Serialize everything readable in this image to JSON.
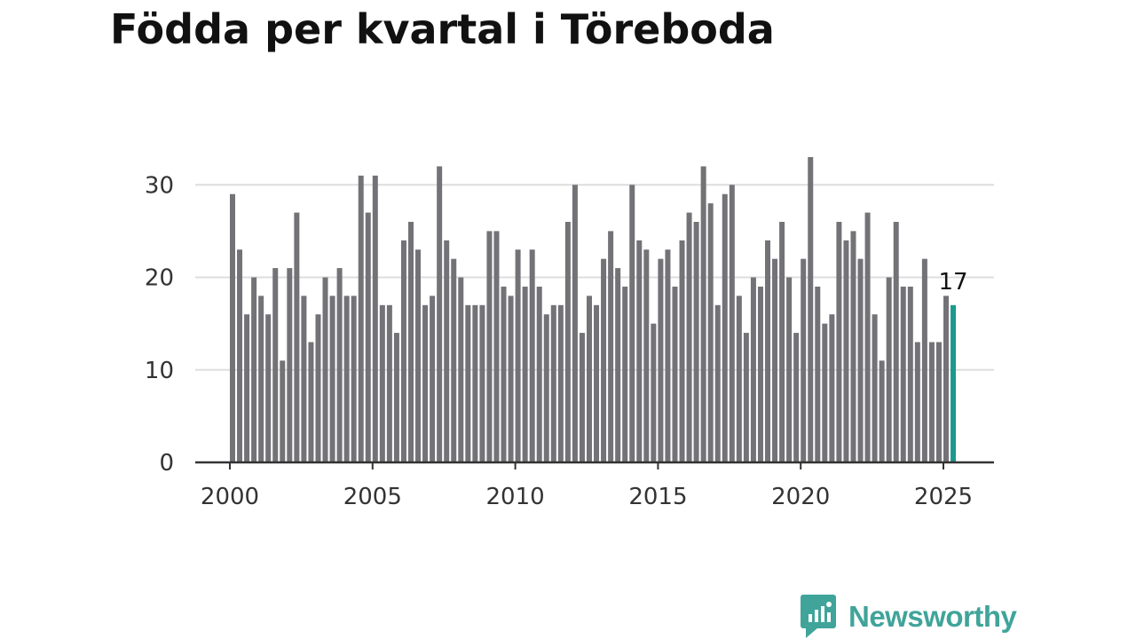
{
  "title": "Födda per kvartal i Töreboda",
  "brand": {
    "name": "Newsworthy",
    "icon": "newsworthy-logo-icon",
    "color": "#40a49a"
  },
  "colors": {
    "bar": "#737276",
    "highlight": "#1a9a8f",
    "grid": "#dddddd",
    "axis": "#333333"
  },
  "chart_data": {
    "type": "bar",
    "title": "Födda per kvartal i Töreboda",
    "xlabel": "",
    "ylabel": "",
    "ylim": [
      0,
      33
    ],
    "yticks": [
      0,
      10,
      20,
      30
    ],
    "xticks": [
      2000,
      2005,
      2010,
      2015,
      2020,
      2025
    ],
    "grid": true,
    "start_year": 2000,
    "periods_per_year": 4,
    "categories": [
      "2000 Q1",
      "2000 Q2",
      "2000 Q3",
      "2000 Q4",
      "2001 Q1",
      "2001 Q2",
      "2001 Q3",
      "2001 Q4",
      "2002 Q1",
      "2002 Q2",
      "2002 Q3",
      "2002 Q4",
      "2003 Q1",
      "2003 Q2",
      "2003 Q3",
      "2003 Q4",
      "2004 Q1",
      "2004 Q2",
      "2004 Q3",
      "2004 Q4",
      "2005 Q1",
      "2005 Q2",
      "2005 Q3",
      "2005 Q4",
      "2006 Q1",
      "2006 Q2",
      "2006 Q3",
      "2006 Q4",
      "2007 Q1",
      "2007 Q2",
      "2007 Q3",
      "2007 Q4",
      "2008 Q1",
      "2008 Q2",
      "2008 Q3",
      "2008 Q4",
      "2009 Q1",
      "2009 Q2",
      "2009 Q3",
      "2009 Q4",
      "2010 Q1",
      "2010 Q2",
      "2010 Q3",
      "2010 Q4",
      "2011 Q1",
      "2011 Q2",
      "2011 Q3",
      "2011 Q4",
      "2012 Q1",
      "2012 Q2",
      "2012 Q3",
      "2012 Q4",
      "2013 Q1",
      "2013 Q2",
      "2013 Q3",
      "2013 Q4",
      "2014 Q1",
      "2014 Q2",
      "2014 Q3",
      "2014 Q4",
      "2015 Q1",
      "2015 Q2",
      "2015 Q3",
      "2015 Q4",
      "2016 Q1",
      "2016 Q2",
      "2016 Q3",
      "2016 Q4",
      "2017 Q1",
      "2017 Q2",
      "2017 Q3",
      "2017 Q4",
      "2018 Q1",
      "2018 Q2",
      "2018 Q3",
      "2018 Q4",
      "2019 Q1",
      "2019 Q2",
      "2019 Q3",
      "2019 Q4",
      "2020 Q1",
      "2020 Q2",
      "2020 Q3",
      "2020 Q4",
      "2021 Q1",
      "2021 Q2",
      "2021 Q3",
      "2021 Q4",
      "2022 Q1",
      "2022 Q2",
      "2022 Q3",
      "2022 Q4",
      "2023 Q1",
      "2023 Q2",
      "2023 Q3",
      "2023 Q4",
      "2024 Q1",
      "2024 Q2",
      "2024 Q3",
      "2024 Q4",
      "2025 Q1",
      "2025 Q2"
    ],
    "values": [
      29,
      23,
      16,
      20,
      18,
      16,
      21,
      11,
      21,
      27,
      18,
      13,
      16,
      20,
      18,
      21,
      18,
      18,
      31,
      27,
      31,
      17,
      17,
      14,
      24,
      26,
      23,
      17,
      18,
      32,
      24,
      22,
      20,
      17,
      17,
      17,
      25,
      25,
      19,
      18,
      23,
      19,
      23,
      19,
      16,
      17,
      17,
      26,
      30,
      14,
      18,
      17,
      22,
      25,
      21,
      19,
      30,
      24,
      23,
      15,
      22,
      23,
      19,
      24,
      27,
      26,
      32,
      28,
      17,
      29,
      30,
      18,
      14,
      20,
      19,
      24,
      22,
      26,
      20,
      14,
      22,
      33,
      19,
      15,
      16,
      26,
      24,
      25,
      22,
      27,
      16,
      11,
      20,
      26,
      19,
      19,
      13,
      22,
      13,
      13,
      18,
      17
    ],
    "highlight_index": 101,
    "highlight_label": "17"
  }
}
